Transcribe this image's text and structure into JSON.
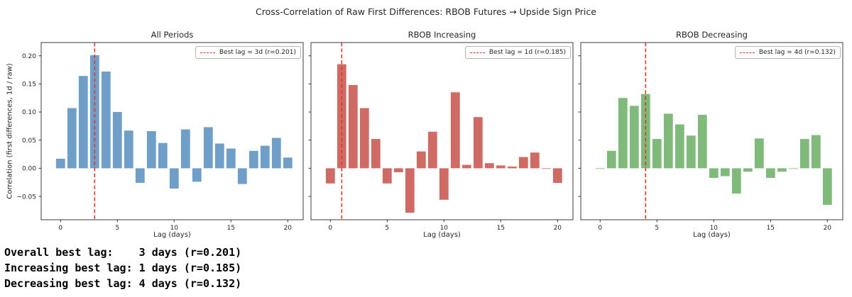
{
  "figure": {
    "title": "Cross-Correlation of Raw First Differences: RBOB Futures → Upside Sign Price"
  },
  "chart_data": {
    "type": "bar",
    "xlabel": "Lag (days)",
    "ylabel": "Correlation (first differences, 1d / raw)",
    "x": [
      0,
      1,
      2,
      3,
      4,
      5,
      6,
      7,
      8,
      9,
      10,
      11,
      12,
      13,
      14,
      15,
      16,
      17,
      18,
      19,
      20
    ],
    "xticks": [
      0,
      5,
      10,
      15,
      20
    ],
    "yticks": [
      0.2,
      0.15,
      0.1,
      0.05,
      0.0,
      -0.05
    ],
    "ylim": [
      -0.0915,
      0.2235
    ],
    "grid": false,
    "legend_position": "upper right",
    "best_line_color": "#e0362b",
    "charts": [
      {
        "title": "All Periods",
        "color": "#6f9fc8",
        "legend": "Best lag = 3d (r=0.201)",
        "best_lag": 3,
        "best_r": 0.201,
        "values": [
          0.017,
          0.107,
          0.164,
          0.201,
          0.172,
          0.1,
          0.067,
          -0.026,
          0.066,
          0.045,
          -0.036,
          0.069,
          -0.024,
          0.073,
          0.044,
          0.035,
          -0.028,
          0.031,
          0.04,
          0.054,
          0.019
        ]
      },
      {
        "title": "RBOB Increasing",
        "color": "#cf6a64",
        "legend": "Best lag = 1d (r=0.185)",
        "best_lag": 1,
        "best_r": 0.185,
        "values": [
          -0.027,
          0.185,
          0.148,
          0.107,
          0.052,
          -0.027,
          -0.007,
          -0.079,
          0.03,
          0.065,
          -0.056,
          0.135,
          0.006,
          0.091,
          0.009,
          0.005,
          0.003,
          0.02,
          0.028,
          -0.001,
          -0.026
        ]
      },
      {
        "title": "RBOB Decreasing",
        "color": "#7fba7a",
        "legend": "Best lag = 4d (r=0.132)",
        "best_lag": 4,
        "best_r": 0.132,
        "values": [
          -0.001,
          0.031,
          0.125,
          0.111,
          0.132,
          0.052,
          0.097,
          0.078,
          0.058,
          0.095,
          -0.017,
          -0.014,
          -0.045,
          -0.006,
          0.053,
          -0.017,
          -0.006,
          -0.001,
          0.052,
          0.059,
          -0.065
        ]
      }
    ]
  },
  "summary_lines": [
    "Overall best lag:    3 days (r=0.201)",
    "Increasing best lag: 1 days (r=0.185)",
    "Decreasing best lag: 4 days (r=0.132)"
  ]
}
